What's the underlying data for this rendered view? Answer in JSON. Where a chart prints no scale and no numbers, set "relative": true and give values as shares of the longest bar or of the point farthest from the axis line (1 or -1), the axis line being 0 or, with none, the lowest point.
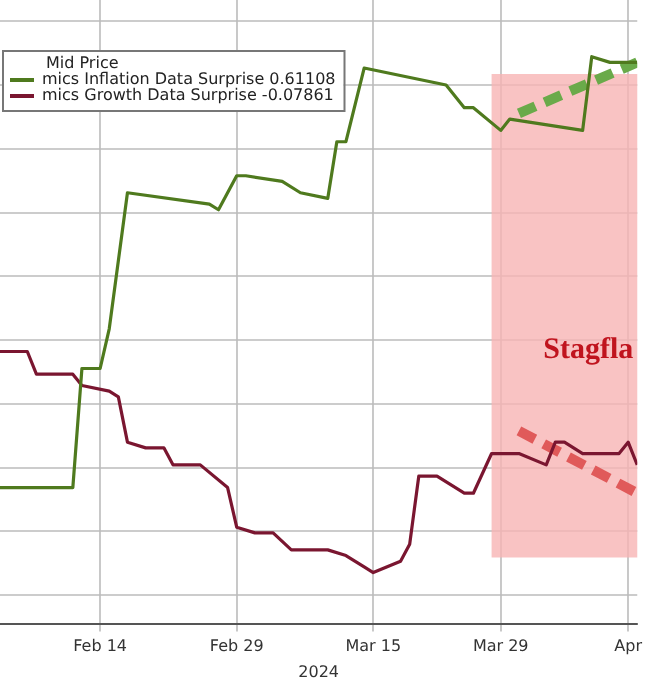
{
  "chart_data": {
    "type": "line",
    "relative": true,
    "xlabel": "2024",
    "legend_title": "Mid Price",
    "legend": "top left",
    "grid": true,
    "marker": "none",
    "xlim": [
      "2024-02-03",
      "2024-04-13"
    ],
    "xticks": [
      {
        "value": "2024-02-14",
        "label": "Feb 14"
      },
      {
        "value": "2024-02-29",
        "label": "Feb 29"
      },
      {
        "value": "2024-03-15",
        "label": "Mar 15"
      },
      {
        "value": "2024-03-29",
        "label": "Mar 29"
      },
      {
        "value": "2024-04-12",
        "label": "Apr"
      }
    ],
    "bands": [
      {
        "axis": "x",
        "from": "2024-03-28",
        "to": "2024-04-13",
        "label": "Stagfla",
        "color": "#f7b4b4"
      }
    ],
    "series": [
      {
        "name": "mics Inflation Data Surprise 0.61108",
        "color": "#4f7a1e",
        "line_style": "solid",
        "x": [
          "2024-02-03",
          "2024-02-11",
          "2024-02-12",
          "2024-02-14",
          "2024-02-15",
          "2024-02-17",
          "2024-02-26",
          "2024-02-27",
          "2024-02-28",
          "2024-02-29",
          "2024-03-01",
          "2024-03-05",
          "2024-03-07",
          "2024-03-10",
          "2024-03-11",
          "2024-03-12",
          "2024-03-14",
          "2024-03-23",
          "2024-03-25",
          "2024-03-26",
          "2024-03-29",
          "2024-03-30",
          "2024-04-07",
          "2024-04-08",
          "2024-04-10",
          "2024-04-11",
          "2024-04-13"
        ],
        "values": [
          0.24,
          0.24,
          0.45,
          0.45,
          0.52,
          0.76,
          0.74,
          0.73,
          0.76,
          0.79,
          0.79,
          0.78,
          0.76,
          0.75,
          0.85,
          0.85,
          0.98,
          0.95,
          0.91,
          0.91,
          0.87,
          0.89,
          0.87,
          1,
          0.99,
          0.99,
          0.99
        ]
      },
      {
        "name": "mics Growth Data Surprise -0.07861",
        "color": "#7a1630",
        "line_style": "solid",
        "x": [
          "2024-02-03",
          "2024-02-06",
          "2024-02-07",
          "2024-02-11",
          "2024-02-12",
          "2024-02-15",
          "2024-02-16",
          "2024-02-17",
          "2024-02-19",
          "2024-02-21",
          "2024-02-22",
          "2024-02-25",
          "2024-02-28",
          "2024-02-29",
          "2024-03-02",
          "2024-03-04",
          "2024-03-06",
          "2024-03-10",
          "2024-03-12",
          "2024-03-14",
          "2024-03-15",
          "2024-03-18",
          "2024-03-19",
          "2024-03-20",
          "2024-03-22",
          "2024-03-25",
          "2024-03-26",
          "2024-03-28",
          "2024-03-31",
          "2024-04-03",
          "2024-04-04",
          "2024-04-05",
          "2024-04-07",
          "2024-04-11",
          "2024-04-12",
          "2024-04-13"
        ],
        "values": [
          0.48,
          0.48,
          0.44,
          0.44,
          0.42,
          0.41,
          0.4,
          0.32,
          0.31,
          0.31,
          0.28,
          0.28,
          0.24,
          0.17,
          0.16,
          0.16,
          0.13,
          0.13,
          0.12,
          0.1,
          0.09,
          0.11,
          0.14,
          0.26,
          0.26,
          0.23,
          0.23,
          0.3,
          0.3,
          0.28,
          0.32,
          0.32,
          0.3,
          0.3,
          0.32,
          0.28
        ]
      },
      {
        "color": "#6aaa4a",
        "line_style": "dashed",
        "x": [
          "2024-03-31",
          "2024-04-13"
        ],
        "values": [
          0.9,
          0.99
        ]
      },
      {
        "color": "#e05a5a",
        "line_style": "dashed",
        "x": [
          "2024-03-31",
          "2024-04-13"
        ],
        "values": [
          0.34,
          0.23
        ]
      }
    ]
  }
}
